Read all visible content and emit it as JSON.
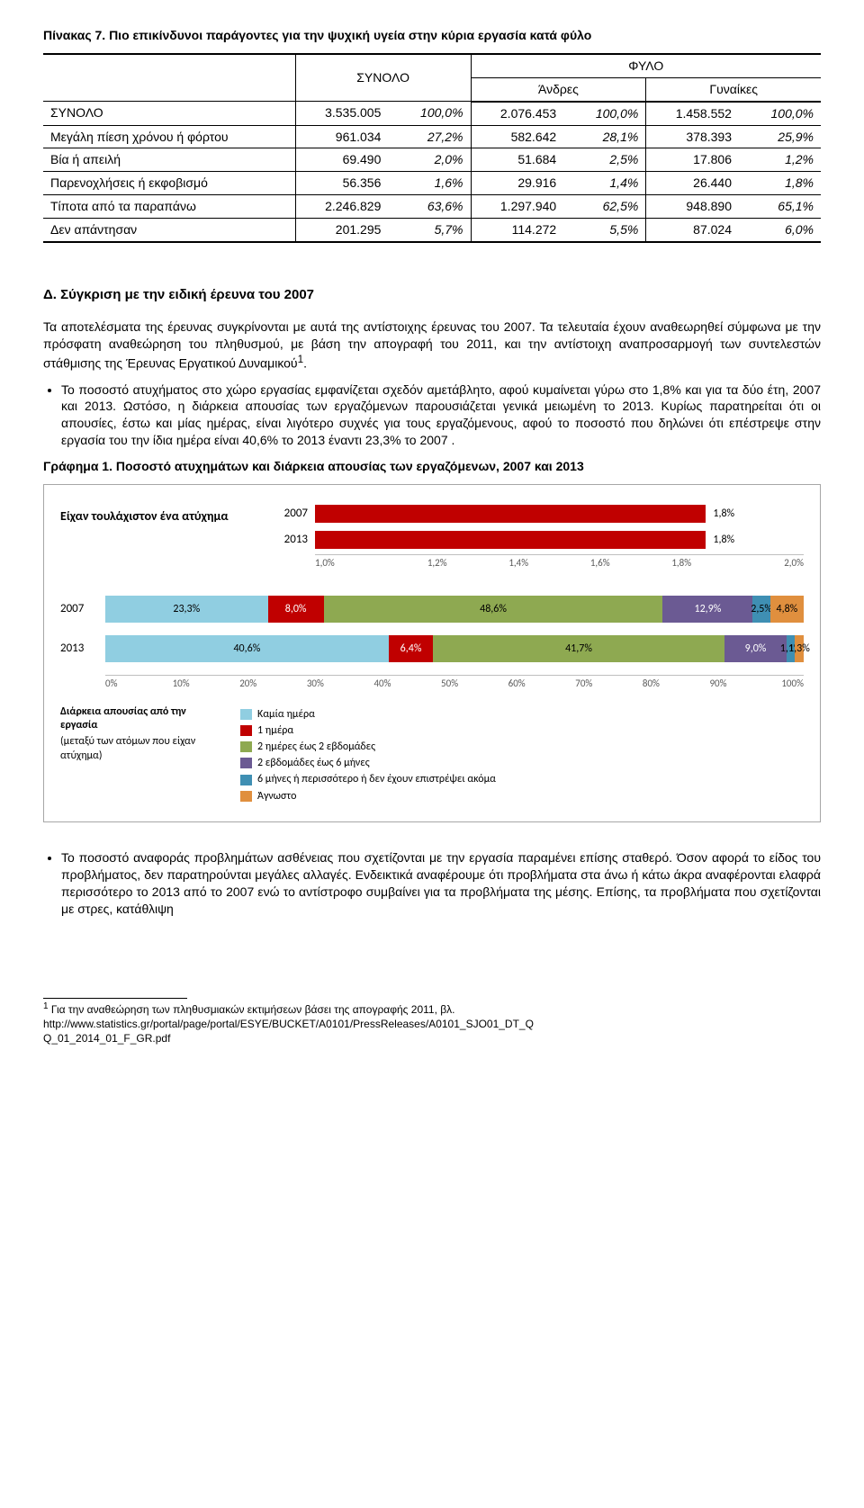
{
  "caption7": "Πίνακας 7. Πιο επικίνδυνοι παράγοντες για την ψυχική υγεία στην κύρια εργασία κατά φύλο",
  "t7": {
    "superhead": [
      "",
      "ΣΥΝΟΛΟ",
      "ΦΥΛΟ"
    ],
    "subhead": [
      "",
      "",
      "Άνδρες",
      "Γυναίκες"
    ],
    "rows": [
      {
        "l": "ΣΥΝΟΛΟ",
        "a": "3.535.005",
        "ap": "100,0%",
        "m": "2.076.453",
        "mp": "100,0%",
        "f": "1.458.552",
        "fp": "100,0%"
      },
      {
        "l": "Μεγάλη πίεση χρόνου ή φόρτου",
        "a": "961.034",
        "ap": "27,2%",
        "m": "582.642",
        "mp": "28,1%",
        "f": "378.393",
        "fp": "25,9%"
      },
      {
        "l": "Βία ή απειλή",
        "a": "69.490",
        "ap": "2,0%",
        "m": "51.684",
        "mp": "2,5%",
        "f": "17.806",
        "fp": "1,2%"
      },
      {
        "l": "Παρενοχλήσεις ή εκφοβισμό",
        "a": "56.356",
        "ap": "1,6%",
        "m": "29.916",
        "mp": "1,4%",
        "f": "26.440",
        "fp": "1,8%"
      },
      {
        "l": "Τίποτα από τα παραπάνω",
        "a": "2.246.829",
        "ap": "63,6%",
        "m": "1.297.940",
        "mp": "62,5%",
        "f": "948.890",
        "fp": "65,1%"
      },
      {
        "l": "Δεν απάντησαν",
        "a": "201.295",
        "ap": "5,7%",
        "m": "114.272",
        "mp": "5,5%",
        "f": "87.024",
        "fp": "6,0%"
      }
    ]
  },
  "headingD": "Δ. Σύγκριση με την ειδική έρευνα του 2007",
  "para1": "Τα αποτελέσματα της έρευνας συγκρίνονται με αυτά της αντίστοιχης έρευνας του 2007. Τα τελευταία έχουν αναθεωρηθεί σύμφωνα με την πρόσφατη αναθεώρηση του πληθυσμού, με βάση την απογραφή του 2011, και την αντίστοιχη αναπροσαρμογή των συντελεστών στάθμισης της Έρευνας Εργατικού Δυναμικού",
  "fnmark": "1",
  "para1b": ".",
  "bullet1": "Το ποσοστό ατυχήματος στο χώρο εργασίας εμφανίζεται σχεδόν αμετάβλητο, αφού κυμαίνεται γύρω στο 1,8% και για τα δύο έτη, 2007 και 2013. Ωστόσο, η διάρκεια απουσίας των εργαζόμενων παρουσιάζεται γενικά μειωμένη το 2013. Κυρίως παρατηρείται ότι οι απουσίες, έστω  και μίας ημέρας, είναι λιγότερο συχνές για τους εργαζόμενους, αφού το ποσοστό που δηλώνει ότι  επέστρεψε στην εργασία του την ίδια ημέρα είναι 40,6% το 2013 έναντι 23,3% το 2007 .",
  "caption_g1": "Γράφημα 1. Ποσοστό ατυχημάτων και διάρκεια απουσίας των εργαζόμενων, 2007 και 2013",
  "chart1": {
    "mini": {
      "title": "Είχαν τουλάχιστον ένα ατύχημα",
      "bar_color": "#c00000",
      "xmin": 1.0,
      "xmax": 2.0,
      "ticks": [
        "1,0%",
        "1,2%",
        "1,4%",
        "1,6%",
        "1,8%",
        "2,0%"
      ],
      "rows": [
        {
          "year": "2007",
          "value": 1.8,
          "label": "1,8%"
        },
        {
          "year": "2013",
          "value": 1.8,
          "label": "1,8%"
        }
      ]
    },
    "stack": {
      "ticks": [
        "0%",
        "10%",
        "20%",
        "30%",
        "40%",
        "50%",
        "60%",
        "70%",
        "80%",
        "90%",
        "100%"
      ],
      "colors": {
        "none": "#90cee1",
        "d1": "#c00000",
        "d2": "#8ea951",
        "d3": "#6b5a93",
        "d4": "#3f8fb3",
        "unk": "#e08f3e"
      },
      "rows": [
        {
          "year": "2007",
          "seg": [
            {
              "k": "none",
              "v": 23.3,
              "t": "23,3%"
            },
            {
              "k": "d1",
              "v": 8.0,
              "t": "8,0%"
            },
            {
              "k": "d2",
              "v": 48.6,
              "t": "48,6%"
            },
            {
              "k": "d3",
              "v": 12.9,
              "t": "12,9%"
            },
            {
              "k": "d4",
              "v": 2.5,
              "t": "2,5%"
            },
            {
              "k": "unk",
              "v": 4.8,
              "t": "4,8%"
            }
          ]
        },
        {
          "year": "2013",
          "seg": [
            {
              "k": "none",
              "v": 40.6,
              "t": "40,6%"
            },
            {
              "k": "d1",
              "v": 6.4,
              "t": "6,4%"
            },
            {
              "k": "d2",
              "v": 41.7,
              "t": "41,7%"
            },
            {
              "k": "d3",
              "v": 9.0,
              "t": "9,0%"
            },
            {
              "k": "d4",
              "v": 1.1,
              "t": "1,1%"
            },
            {
              "k": "unk",
              "v": 1.3,
              "t": "1,3%"
            }
          ]
        }
      ]
    },
    "legend_left_1": "Διάρκεια απουσίας από την εργασία",
    "legend_left_2": "(μεταξύ των ατόμων που είχαν ατύχημα)",
    "legend": [
      {
        "k": "none",
        "t": "Καμία ημέρα"
      },
      {
        "k": "d1",
        "t": "1 ημέρα"
      },
      {
        "k": "d2",
        "t": "2 ημέρες έως 2 εβδομάδες"
      },
      {
        "k": "d3",
        "t": "2 εβδομάδες έως 6 μήνες"
      },
      {
        "k": "d4",
        "t": "6 μήνες ή περισσότερο ή δεν έχουν επιστρέψει ακόμα"
      },
      {
        "k": "unk",
        "t": "Άγνωστο"
      }
    ]
  },
  "bullet2": "Το ποσοστό αναφοράς προβλημάτων ασθένειας που σχετίζονται με την εργασία παραμένει επίσης σταθερό. Όσον αφορά το είδος του προβλήματος, δεν παρατηρούνται μεγάλες αλλαγές. Ενδεικτικά αναφέρουμε ότι προβλήματα στα άνω ή κάτω άκρα αναφέρονται ελαφρά περισσότερο το 2013 από το 2007 ενώ το αντίστροφο συμβαίνει για τα προβλήματα της μέσης. Επίσης, τα προβλήματα που σχετίζονται με στρες, κατάθλιψη",
  "footnote_txt": " Για την αναθεώρηση των πληθυσμιακών εκτιμήσεων βάσει της απογραφής 2011, βλ.",
  "footnote_url": "http://www.statistics.gr/portal/page/portal/ESYE/BUCKET/A0101/PressReleases/A0101_SJO01_DT_Q",
  "footnote_tail": "Q_01_2014_01_F_GR.pdf"
}
